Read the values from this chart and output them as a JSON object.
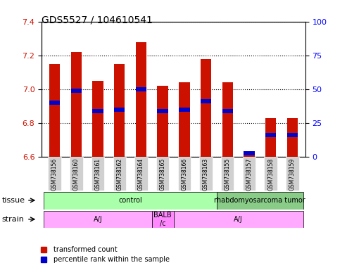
{
  "title": "GDS5527 / 104610541",
  "samples": [
    "GSM738156",
    "GSM738160",
    "GSM738161",
    "GSM738162",
    "GSM738164",
    "GSM738165",
    "GSM738166",
    "GSM738163",
    "GSM738155",
    "GSM738157",
    "GSM738158",
    "GSM738159"
  ],
  "red_values": [
    7.15,
    7.22,
    7.05,
    7.15,
    7.28,
    7.02,
    7.04,
    7.18,
    7.04,
    6.63,
    6.83,
    6.83
  ],
  "blue_values": [
    6.92,
    6.99,
    6.87,
    6.88,
    7.0,
    6.87,
    6.88,
    6.93,
    6.87,
    6.62,
    6.73,
    6.73
  ],
  "ylim_left": [
    6.6,
    7.4
  ],
  "ylim_right": [
    0,
    100
  ],
  "yticks_left": [
    6.6,
    6.8,
    7.0,
    7.2,
    7.4
  ],
  "yticks_right": [
    0,
    25,
    50,
    75,
    100
  ],
  "bar_color": "#cc1100",
  "dot_color": "#0000cc",
  "bar_width": 0.5,
  "tissue_labels": [
    {
      "label": "control",
      "start": 0,
      "end": 8,
      "color": "#aaffaa"
    },
    {
      "label": "rhabdomyosarcoma tumor",
      "start": 8,
      "end": 12,
      "color": "#88cc88"
    }
  ],
  "strain_labels": [
    {
      "label": "A/J",
      "start": 0,
      "end": 5,
      "color": "#ffaaff"
    },
    {
      "label": "BALB\n/c",
      "start": 5,
      "end": 6,
      "color": "#ff88ff"
    },
    {
      "label": "A/J",
      "start": 6,
      "end": 12,
      "color": "#ffaaff"
    }
  ],
  "legend_red": "transformed count",
  "legend_blue": "percentile rank within the sample",
  "xlabel_tissue": "tissue",
  "xlabel_strain": "strain"
}
